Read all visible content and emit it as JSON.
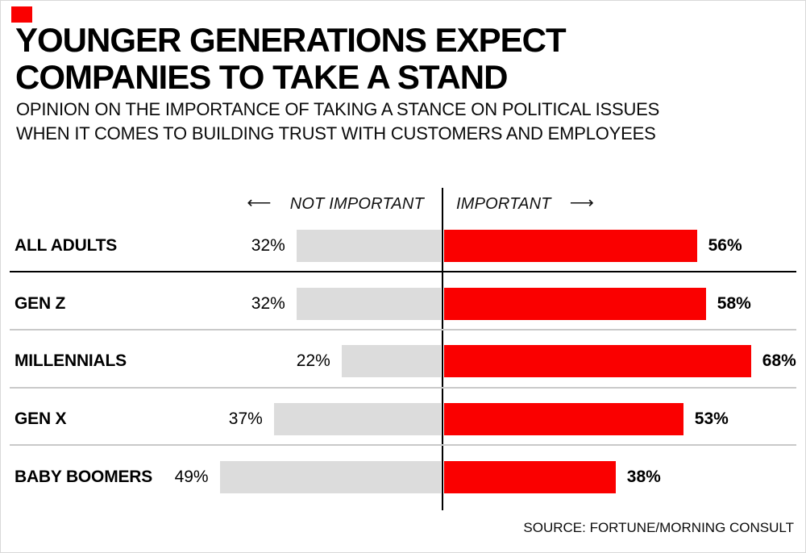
{
  "colors": {
    "accent_red": "#FA0000",
    "gray_bar": "#DCDCDC",
    "separator_dark": "#000000",
    "separator_light": "#C9C9C9"
  },
  "header": {
    "title_line1": "YOUNGER GENERATIONS EXPECT",
    "title_line2": "COMPANIES TO TAKE A STAND",
    "subtitle_line1": "OPINION ON THE IMPORTANCE OF TAKING A STANCE ON POLITICAL ISSUES",
    "subtitle_line2": "WHEN IT COMES TO BUILDING TRUST WITH CUSTOMERS AND EMPLOYEES"
  },
  "axis": {
    "left_arrow": "⟵",
    "left_label": "NOT IMPORTANT",
    "right_label": "IMPORTANT",
    "right_arrow": "⟶"
  },
  "chart_data": {
    "type": "bar",
    "variant": "horizontal-diverging",
    "title": "YOUNGER GENERATIONS EXPECT COMPANIES TO TAKE A STAND",
    "unit": "%",
    "categories": [
      "ALL ADULTS",
      "GEN Z",
      "MILLENNIALS",
      "GEN X",
      "BABY BOOMERS"
    ],
    "series": [
      {
        "name": "NOT IMPORTANT",
        "direction": "left",
        "color": "#DCDCDC",
        "values": [
          32,
          32,
          22,
          37,
          49
        ]
      },
      {
        "name": "IMPORTANT",
        "direction": "right",
        "color": "#FA0000",
        "values": [
          56,
          58,
          68,
          53,
          38
        ]
      }
    ],
    "value_labels": {
      "left": [
        "32%",
        "32%",
        "22%",
        "37%",
        "49%"
      ],
      "right": [
        "56%",
        "58%",
        "68%",
        "53%",
        "38%"
      ]
    },
    "legend_position": "above-center",
    "grid": false
  },
  "source": "SOURCE: FORTUNE/MORNING CONSULT"
}
